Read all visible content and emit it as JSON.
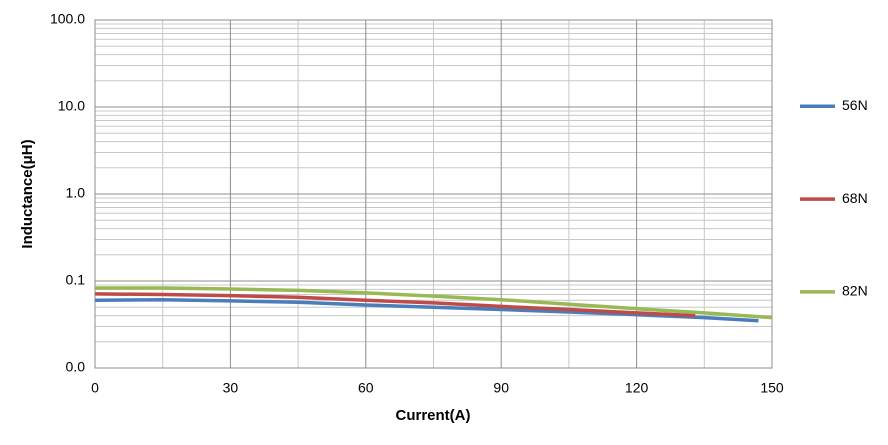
{
  "chart_data": {
    "type": "line",
    "xlabel": "Current(A)",
    "ylabel": "Inductance(μH)",
    "xlim": [
      0,
      150
    ],
    "xticks": [
      0,
      30,
      60,
      90,
      120,
      150
    ],
    "ylim": [
      0.01,
      100
    ],
    "yscale": "log",
    "yticks": [
      {
        "value": 0.01,
        "label": "0.0"
      },
      {
        "value": 0.1,
        "label": "0.1"
      },
      {
        "value": 1,
        "label": "1.0"
      },
      {
        "value": 10,
        "label": "10.0"
      },
      {
        "value": 100,
        "label": "100.0"
      }
    ],
    "grid": true,
    "legend": "right",
    "series": [
      {
        "name": "56N",
        "color": "#4a7ebb",
        "x": [
          0,
          15,
          30,
          45,
          60,
          75,
          90,
          105,
          120,
          135,
          147
        ],
        "values": [
          0.06,
          0.061,
          0.059,
          0.057,
          0.053,
          0.05,
          0.047,
          0.044,
          0.041,
          0.038,
          0.035
        ]
      },
      {
        "name": "68N",
        "color": "#be4b48",
        "x": [
          0,
          15,
          30,
          45,
          60,
          75,
          90,
          105,
          120,
          133
        ],
        "values": [
          0.071,
          0.07,
          0.068,
          0.065,
          0.06,
          0.056,
          0.051,
          0.047,
          0.043,
          0.04
        ]
      },
      {
        "name": "82N",
        "color": "#98b954",
        "x": [
          0,
          15,
          30,
          45,
          60,
          75,
          90,
          105,
          120,
          135,
          150
        ],
        "values": [
          0.083,
          0.083,
          0.081,
          0.078,
          0.073,
          0.067,
          0.061,
          0.054,
          0.048,
          0.043,
          0.038
        ]
      }
    ]
  }
}
